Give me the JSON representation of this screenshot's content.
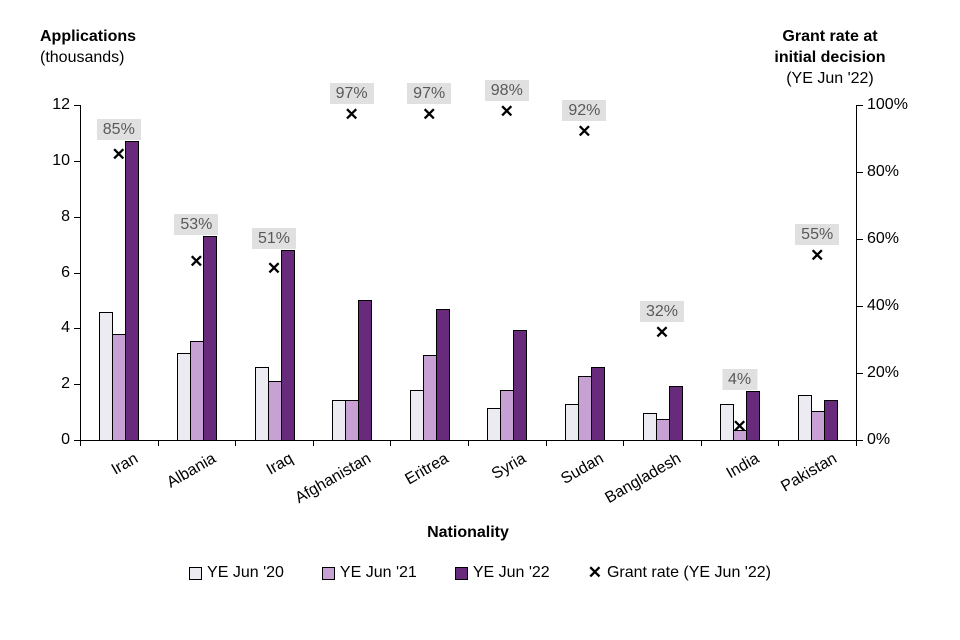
{
  "titles": {
    "left_line1": "Applications",
    "left_line2": "(thousands)",
    "right_line1": "Grant rate at",
    "right_line2": "initial decision",
    "right_line3": "(YE Jun '22)",
    "x_axis": "Nationality"
  },
  "legend": [
    {
      "label": "YE Jun '20",
      "type": "bar",
      "series": 0
    },
    {
      "label": "YE Jun '21",
      "type": "bar",
      "series": 1
    },
    {
      "label": "YE Jun '22",
      "type": "bar",
      "series": 2
    },
    {
      "label": "Grant rate (YE Jun '22)",
      "type": "marker"
    }
  ],
  "marker_glyph": "✕",
  "colors": {
    "series_fills": [
      "#edebf2",
      "#c7a1d3",
      "#682a7b"
    ],
    "bar_border": "#000000",
    "marker": "#000000",
    "pct_label_bg": "#e0e0e0",
    "pct_label_text": "#595959",
    "axis": "#000000"
  },
  "chart_data": {
    "type": "bar",
    "overlay": "scatter",
    "title": "",
    "xlabel": "Nationality",
    "grid": false,
    "legend_position": "bottom",
    "categories": [
      "Iran",
      "Albania",
      "Iraq",
      "Afghanistan",
      "Eritrea",
      "Syria",
      "Sudan",
      "Bangladesh",
      "India",
      "Pakistan"
    ],
    "series": [
      {
        "name": "YE Jun '20",
        "values": [
          4.6,
          3.1,
          2.6,
          1.45,
          1.8,
          1.15,
          1.3,
          0.95,
          1.3,
          1.6
        ]
      },
      {
        "name": "YE Jun '21",
        "values": [
          3.8,
          3.55,
          2.1,
          1.45,
          3.05,
          1.8,
          2.3,
          0.75,
          0.35,
          1.05
        ]
      },
      {
        "name": "YE Jun '22",
        "values": [
          10.7,
          7.3,
          6.8,
          5.0,
          4.7,
          3.95,
          2.6,
          1.95,
          1.75,
          1.45
        ]
      }
    ],
    "grant_rate": {
      "name": "Grant rate (YE Jun '22)",
      "unit": "%",
      "values": [
        85,
        53,
        51,
        97,
        97,
        98,
        92,
        32,
        4,
        55
      ],
      "labels": [
        "85%",
        "53%",
        "51%",
        "97%",
        "97%",
        "98%",
        "92%",
        "32%",
        "4%",
        "55%"
      ]
    },
    "left_axis": {
      "label": "Applications (thousands)",
      "min": 0,
      "max": 12,
      "ticks": [
        0,
        2,
        4,
        6,
        8,
        10,
        12
      ]
    },
    "right_axis": {
      "label": "Grant rate at initial decision (YE Jun '22)",
      "min": 0,
      "max": 100,
      "ticks": [
        0,
        20,
        40,
        60,
        80,
        100
      ],
      "tick_labels": [
        "0%",
        "20%",
        "40%",
        "60%",
        "80%",
        "100%"
      ]
    }
  }
}
